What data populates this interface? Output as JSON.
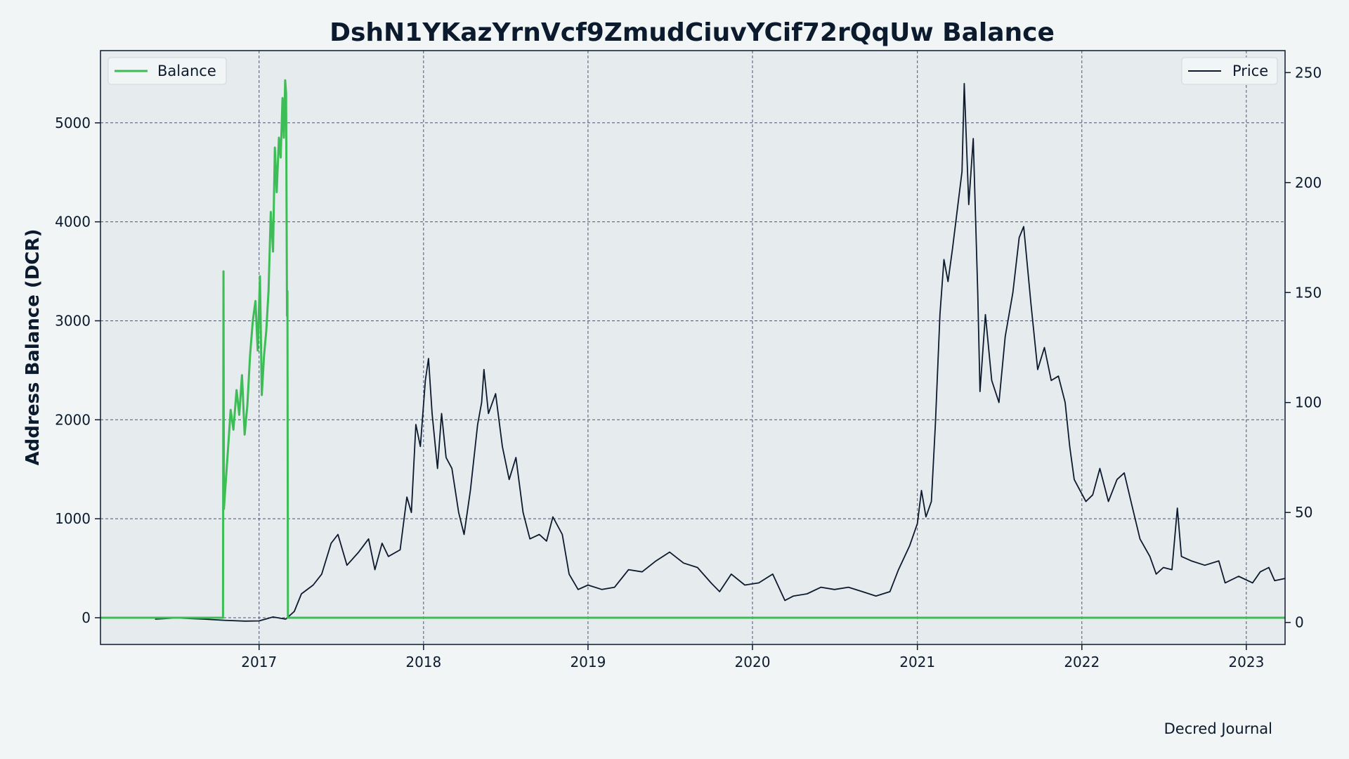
{
  "footer": {
    "source_label": "Decred Journal"
  },
  "colors": {
    "figure_background": "#f1f5f6",
    "plot_background": "#e6ebee",
    "balance_line": "#3dbd55",
    "price_line": "#0c1a2e",
    "grid": "#4a5570",
    "text": "#0c1a2e"
  },
  "chart_data": {
    "type": "line",
    "title": "DshN1YKazYrnVcf9ZmudCiuvYCif72rQqUw Balance",
    "xlabel": "",
    "ylabel": "Address Balance (DCR)",
    "y2label": "",
    "grid": true,
    "x_range": [
      "2016-01-15",
      "2023-03-28"
    ],
    "ylim": [
      -270,
      5730
    ],
    "y2lim": [
      -10,
      260
    ],
    "x_ticks": [
      "2017",
      "2018",
      "2019",
      "2020",
      "2021",
      "2022",
      "2023"
    ],
    "y_ticks": [
      0,
      1000,
      2000,
      3000,
      4000,
      5000
    ],
    "y2_ticks": [
      0,
      50,
      100,
      150,
      200,
      250
    ],
    "legends": [
      {
        "placement": "upper left",
        "entries": [
          "Balance"
        ]
      },
      {
        "placement": "upper right",
        "entries": [
          "Price"
        ]
      }
    ],
    "series": [
      {
        "name": "Balance",
        "axis": "left",
        "color": "#3dbd55",
        "points": [
          [
            "2016-01-15",
            0
          ],
          [
            "2016-10-13",
            0
          ],
          [
            "2016-10-14",
            3500
          ],
          [
            "2016-10-15",
            1100
          ],
          [
            "2016-10-18",
            1300
          ],
          [
            "2016-10-24",
            1700
          ],
          [
            "2016-10-30",
            2100
          ],
          [
            "2016-11-05",
            1900
          ],
          [
            "2016-11-12",
            2300
          ],
          [
            "2016-11-18",
            2050
          ],
          [
            "2016-11-24",
            2450
          ],
          [
            "2016-11-30",
            1850
          ],
          [
            "2016-12-06",
            2150
          ],
          [
            "2016-12-12",
            2650
          ],
          [
            "2016-12-18",
            3000
          ],
          [
            "2016-12-24",
            3200
          ],
          [
            "2016-12-29",
            2700
          ],
          [
            "2017-01-03",
            3450
          ],
          [
            "2017-01-07",
            2250
          ],
          [
            "2017-01-12",
            2650
          ],
          [
            "2017-01-17",
            2900
          ],
          [
            "2017-01-22",
            3300
          ],
          [
            "2017-01-27",
            4100
          ],
          [
            "2017-02-01",
            3700
          ],
          [
            "2017-02-05",
            4750
          ],
          [
            "2017-02-09",
            4300
          ],
          [
            "2017-02-14",
            4850
          ],
          [
            "2017-02-18",
            4650
          ],
          [
            "2017-02-22",
            5250
          ],
          [
            "2017-02-25",
            4850
          ],
          [
            "2017-02-28",
            5430
          ],
          [
            "2017-03-02",
            5300
          ],
          [
            "2017-03-04",
            3050
          ],
          [
            "2017-03-05",
            3300
          ],
          [
            "2017-03-06",
            0
          ],
          [
            "2023-03-28",
            0
          ]
        ]
      },
      {
        "name": "Price",
        "axis": "right",
        "color": "#0c1a2e",
        "points": [
          [
            "2016-05-15",
            1.5
          ],
          [
            "2016-07-01",
            2
          ],
          [
            "2016-09-01",
            1.5
          ],
          [
            "2016-10-15",
            1
          ],
          [
            "2016-12-01",
            0.6
          ],
          [
            "2017-01-01",
            0.7
          ],
          [
            "2017-02-01",
            2.5
          ],
          [
            "2017-03-01",
            1.5
          ],
          [
            "2017-03-20",
            5
          ],
          [
            "2017-04-05",
            13
          ],
          [
            "2017-05-01",
            17
          ],
          [
            "2017-05-20",
            22
          ],
          [
            "2017-06-10",
            36
          ],
          [
            "2017-06-25",
            40
          ],
          [
            "2017-07-15",
            26
          ],
          [
            "2017-08-10",
            32
          ],
          [
            "2017-09-01",
            38
          ],
          [
            "2017-09-15",
            24
          ],
          [
            "2017-10-01",
            36
          ],
          [
            "2017-10-15",
            30
          ],
          [
            "2017-11-10",
            33
          ],
          [
            "2017-11-25",
            57
          ],
          [
            "2017-12-05",
            50
          ],
          [
            "2017-12-15",
            90
          ],
          [
            "2017-12-25",
            80
          ],
          [
            "2018-01-05",
            110
          ],
          [
            "2018-01-12",
            120
          ],
          [
            "2018-01-20",
            95
          ],
          [
            "2018-02-01",
            70
          ],
          [
            "2018-02-10",
            95
          ],
          [
            "2018-02-20",
            75
          ],
          [
            "2018-03-05",
            70
          ],
          [
            "2018-03-20",
            50
          ],
          [
            "2018-04-01",
            40
          ],
          [
            "2018-04-15",
            60
          ],
          [
            "2018-05-01",
            90
          ],
          [
            "2018-05-10",
            100
          ],
          [
            "2018-05-15",
            115
          ],
          [
            "2018-05-25",
            95
          ],
          [
            "2018-06-10",
            104
          ],
          [
            "2018-06-25",
            80
          ],
          [
            "2018-07-10",
            65
          ],
          [
            "2018-07-25",
            75
          ],
          [
            "2018-08-10",
            50
          ],
          [
            "2018-08-25",
            38
          ],
          [
            "2018-09-15",
            40
          ],
          [
            "2018-10-01",
            37
          ],
          [
            "2018-10-15",
            48
          ],
          [
            "2018-11-05",
            40
          ],
          [
            "2018-11-20",
            22
          ],
          [
            "2018-12-10",
            15
          ],
          [
            "2019-01-01",
            17
          ],
          [
            "2019-02-01",
            15
          ],
          [
            "2019-03-01",
            16
          ],
          [
            "2019-04-01",
            24
          ],
          [
            "2019-05-01",
            23
          ],
          [
            "2019-06-01",
            28
          ],
          [
            "2019-07-01",
            32
          ],
          [
            "2019-08-01",
            27
          ],
          [
            "2019-09-01",
            25
          ],
          [
            "2019-10-01",
            18
          ],
          [
            "2019-10-20",
            14
          ],
          [
            "2019-11-15",
            22
          ],
          [
            "2019-12-15",
            17
          ],
          [
            "2020-01-15",
            18
          ],
          [
            "2020-02-15",
            22
          ],
          [
            "2020-03-13",
            10
          ],
          [
            "2020-04-01",
            12
          ],
          [
            "2020-05-01",
            13
          ],
          [
            "2020-06-01",
            16
          ],
          [
            "2020-07-01",
            15
          ],
          [
            "2020-08-01",
            16
          ],
          [
            "2020-09-01",
            14
          ],
          [
            "2020-10-01",
            12
          ],
          [
            "2020-11-01",
            14
          ],
          [
            "2020-11-20",
            24
          ],
          [
            "2020-12-15",
            35
          ],
          [
            "2021-01-01",
            45
          ],
          [
            "2021-01-10",
            60
          ],
          [
            "2021-01-20",
            48
          ],
          [
            "2021-02-01",
            55
          ],
          [
            "2021-02-10",
            90
          ],
          [
            "2021-02-20",
            140
          ],
          [
            "2021-03-01",
            165
          ],
          [
            "2021-03-10",
            155
          ],
          [
            "2021-03-20",
            170
          ],
          [
            "2021-04-01",
            190
          ],
          [
            "2021-04-10",
            205
          ],
          [
            "2021-04-15",
            245
          ],
          [
            "2021-04-25",
            190
          ],
          [
            "2021-05-05",
            220
          ],
          [
            "2021-05-15",
            150
          ],
          [
            "2021-05-20",
            105
          ],
          [
            "2021-06-01",
            140
          ],
          [
            "2021-06-15",
            110
          ],
          [
            "2021-07-01",
            100
          ],
          [
            "2021-07-15",
            130
          ],
          [
            "2021-08-01",
            150
          ],
          [
            "2021-08-15",
            175
          ],
          [
            "2021-08-25",
            180
          ],
          [
            "2021-09-10",
            145
          ],
          [
            "2021-09-25",
            115
          ],
          [
            "2021-10-10",
            125
          ],
          [
            "2021-10-25",
            110
          ],
          [
            "2021-11-10",
            112
          ],
          [
            "2021-11-25",
            100
          ],
          [
            "2021-12-05",
            80
          ],
          [
            "2021-12-15",
            65
          ],
          [
            "2022-01-10",
            55
          ],
          [
            "2022-01-25",
            58
          ],
          [
            "2022-02-10",
            70
          ],
          [
            "2022-03-01",
            55
          ],
          [
            "2022-03-20",
            65
          ],
          [
            "2022-04-05",
            68
          ],
          [
            "2022-04-20",
            55
          ],
          [
            "2022-05-10",
            38
          ],
          [
            "2022-06-01",
            30
          ],
          [
            "2022-06-15",
            22
          ],
          [
            "2022-07-01",
            25
          ],
          [
            "2022-07-20",
            24
          ],
          [
            "2022-08-01",
            52
          ],
          [
            "2022-08-10",
            30
          ],
          [
            "2022-09-01",
            28
          ],
          [
            "2022-10-01",
            26
          ],
          [
            "2022-11-01",
            28
          ],
          [
            "2022-11-15",
            18
          ],
          [
            "2022-12-15",
            21
          ],
          [
            "2023-01-15",
            18
          ],
          [
            "2023-02-01",
            23
          ],
          [
            "2023-02-20",
            25
          ],
          [
            "2023-03-05",
            19
          ],
          [
            "2023-03-28",
            20
          ]
        ]
      }
    ]
  }
}
